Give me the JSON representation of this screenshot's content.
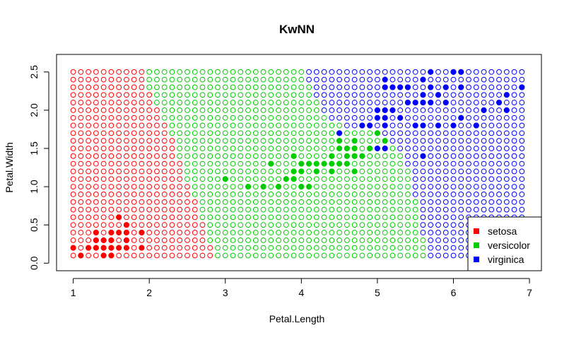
{
  "chart_data": {
    "type": "scatter",
    "title": "KwNN",
    "xlabel": "Petal.Length",
    "ylabel": "Petal.Width",
    "xlim": [
      0.76,
      7.14
    ],
    "ylim": [
      -0.1,
      2.6
    ],
    "x_ticks": [
      "1",
      "2",
      "3",
      "4",
      "5",
      "6",
      "7"
    ],
    "y_ticks": [
      "0.0",
      "0.5",
      "1.0",
      "1.5",
      "2.0",
      "2.5"
    ],
    "grid": false,
    "legend_position": "bottom-right",
    "classes": [
      {
        "name": "setosa",
        "color": "#ff0000"
      },
      {
        "name": "versicolor",
        "color": "#00cd00"
      },
      {
        "name": "virginica",
        "color": "#0000ff"
      }
    ],
    "classification_grid": {
      "x_start": 1.0,
      "x_end": 6.9,
      "x_step": 0.1,
      "y_start": 0.1,
      "y_end": 2.5,
      "y_step": 0.1,
      "marker": "open-circle",
      "class_by_row_boundaries": [
        {
          "y": 2.5,
          "setosa_max_x": 1.9,
          "versicolor_max_x": 4.0
        },
        {
          "y": 2.4,
          "setosa_max_x": 1.9,
          "versicolor_max_x": 4.0
        },
        {
          "y": 2.3,
          "setosa_max_x": 1.9,
          "versicolor_max_x": 4.1
        },
        {
          "y": 2.2,
          "setosa_max_x": 2.0,
          "versicolor_max_x": 4.1
        },
        {
          "y": 2.1,
          "setosa_max_x": 2.0,
          "versicolor_max_x": 4.2
        },
        {
          "y": 2.0,
          "setosa_max_x": 2.1,
          "versicolor_max_x": 4.2
        },
        {
          "y": 1.9,
          "setosa_max_x": 2.1,
          "versicolor_max_x": 4.3
        },
        {
          "y": 1.8,
          "setosa_max_x": 2.2,
          "versicolor_max_x": 4.5
        },
        {
          "y": 1.7,
          "setosa_max_x": 2.2,
          "versicolor_max_x": 5.0
        },
        {
          "y": 1.6,
          "setosa_max_x": 2.3,
          "versicolor_max_x": 5.1
        },
        {
          "y": 1.5,
          "setosa_max_x": 2.3,
          "versicolor_max_x": 5.2
        },
        {
          "y": 1.4,
          "setosa_max_x": 2.3,
          "versicolor_max_x": 5.3
        },
        {
          "y": 1.3,
          "setosa_max_x": 2.4,
          "versicolor_max_x": 5.3
        },
        {
          "y": 1.2,
          "setosa_max_x": 2.4,
          "versicolor_max_x": 5.4
        },
        {
          "y": 1.1,
          "setosa_max_x": 2.4,
          "versicolor_max_x": 5.4
        },
        {
          "y": 1.0,
          "setosa_max_x": 2.5,
          "versicolor_max_x": 5.4
        },
        {
          "y": 0.9,
          "setosa_max_x": 2.5,
          "versicolor_max_x": 5.4
        },
        {
          "y": 0.8,
          "setosa_max_x": 2.6,
          "versicolor_max_x": 5.5
        },
        {
          "y": 0.7,
          "setosa_max_x": 2.6,
          "versicolor_max_x": 5.5
        },
        {
          "y": 0.6,
          "setosa_max_x": 2.6,
          "versicolor_max_x": 5.5
        },
        {
          "y": 0.5,
          "setosa_max_x": 2.7,
          "versicolor_max_x": 5.5
        },
        {
          "y": 0.4,
          "setosa_max_x": 2.7,
          "versicolor_max_x": 5.5
        },
        {
          "y": 0.3,
          "setosa_max_x": 2.7,
          "versicolor_max_x": 5.6
        },
        {
          "y": 0.2,
          "setosa_max_x": 2.8,
          "versicolor_max_x": 5.6
        },
        {
          "y": 0.1,
          "setosa_max_x": 2.8,
          "versicolor_max_x": 5.6
        }
      ]
    },
    "series": [
      {
        "name": "setosa",
        "marker": "filled-circle",
        "points": [
          [
            1.0,
            0.2
          ],
          [
            1.1,
            0.1
          ],
          [
            1.2,
            0.2
          ],
          [
            1.3,
            0.2
          ],
          [
            1.3,
            0.3
          ],
          [
            1.3,
            0.4
          ],
          [
            1.4,
            0.1
          ],
          [
            1.4,
            0.2
          ],
          [
            1.4,
            0.3
          ],
          [
            1.5,
            0.1
          ],
          [
            1.5,
            0.2
          ],
          [
            1.5,
            0.3
          ],
          [
            1.5,
            0.4
          ],
          [
            1.6,
            0.2
          ],
          [
            1.6,
            0.4
          ],
          [
            1.6,
            0.6
          ],
          [
            1.7,
            0.2
          ],
          [
            1.7,
            0.3
          ],
          [
            1.7,
            0.4
          ],
          [
            1.7,
            0.5
          ],
          [
            1.9,
            0.2
          ],
          [
            1.9,
            0.4
          ]
        ]
      },
      {
        "name": "versicolor",
        "marker": "filled-circle",
        "points": [
          [
            3.0,
            1.1
          ],
          [
            3.3,
            1.0
          ],
          [
            3.5,
            1.0
          ],
          [
            3.6,
            1.3
          ],
          [
            3.7,
            1.0
          ],
          [
            3.8,
            1.1
          ],
          [
            3.9,
            1.1
          ],
          [
            3.9,
            1.2
          ],
          [
            3.9,
            1.4
          ],
          [
            4.0,
            1.0
          ],
          [
            4.0,
            1.2
          ],
          [
            4.0,
            1.3
          ],
          [
            4.1,
            1.0
          ],
          [
            4.1,
            1.3
          ],
          [
            4.2,
            1.2
          ],
          [
            4.2,
            1.3
          ],
          [
            4.3,
            1.3
          ],
          [
            4.4,
            1.2
          ],
          [
            4.4,
            1.3
          ],
          [
            4.4,
            1.4
          ],
          [
            4.5,
            1.3
          ],
          [
            4.5,
            1.5
          ],
          [
            4.5,
            1.6
          ],
          [
            4.6,
            1.3
          ],
          [
            4.6,
            1.4
          ],
          [
            4.6,
            1.5
          ],
          [
            4.7,
            1.2
          ],
          [
            4.7,
            1.4
          ],
          [
            4.7,
            1.5
          ],
          [
            4.7,
            1.6
          ],
          [
            4.8,
            1.4
          ],
          [
            4.9,
            1.5
          ],
          [
            5.0,
            1.7
          ],
          [
            5.1,
            1.6
          ]
        ]
      },
      {
        "name": "virginica",
        "marker": "filled-circle",
        "points": [
          [
            4.5,
            1.7
          ],
          [
            4.8,
            1.8
          ],
          [
            4.9,
            1.8
          ],
          [
            5.0,
            1.5
          ],
          [
            5.0,
            1.9
          ],
          [
            5.0,
            2.0
          ],
          [
            5.1,
            1.5
          ],
          [
            5.1,
            1.8
          ],
          [
            5.1,
            1.9
          ],
          [
            5.1,
            2.0
          ],
          [
            5.1,
            2.3
          ],
          [
            5.1,
            2.4
          ],
          [
            5.2,
            2.0
          ],
          [
            5.2,
            2.3
          ],
          [
            5.3,
            1.9
          ],
          [
            5.3,
            2.3
          ],
          [
            5.4,
            2.1
          ],
          [
            5.4,
            2.3
          ],
          [
            5.5,
            1.8
          ],
          [
            5.5,
            2.1
          ],
          [
            5.6,
            1.4
          ],
          [
            5.6,
            1.8
          ],
          [
            5.6,
            2.1
          ],
          [
            5.6,
            2.2
          ],
          [
            5.6,
            2.4
          ],
          [
            5.7,
            2.1
          ],
          [
            5.7,
            2.3
          ],
          [
            5.7,
            2.5
          ],
          [
            5.8,
            1.8
          ],
          [
            5.8,
            2.2
          ],
          [
            5.9,
            2.1
          ],
          [
            5.9,
            2.3
          ],
          [
            6.0,
            1.8
          ],
          [
            6.0,
            2.5
          ],
          [
            6.1,
            1.9
          ],
          [
            6.1,
            2.3
          ],
          [
            6.1,
            2.5
          ],
          [
            6.3,
            1.8
          ],
          [
            6.4,
            2.0
          ],
          [
            6.6,
            2.1
          ],
          [
            6.7,
            2.0
          ],
          [
            6.7,
            2.2
          ],
          [
            6.9,
            2.3
          ]
        ]
      }
    ]
  }
}
